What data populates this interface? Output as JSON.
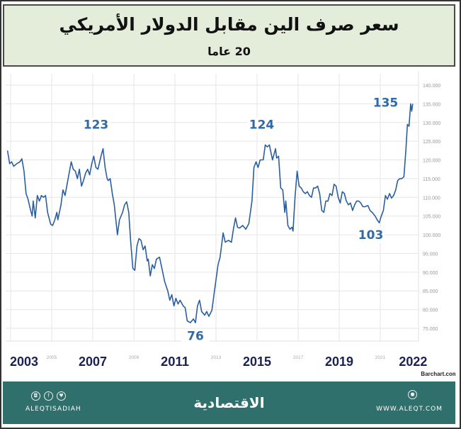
{
  "header": {
    "title": "سعر صرف الين مقابل الدولار الأمريكي",
    "subtitle": "20 عاما"
  },
  "footer": {
    "handle": "ALEQTISADIAH",
    "logo": "الاقتصادية",
    "site": "WWW.ALEQT.COM",
    "icons": [
      "instagram-icon",
      "facebook-icon",
      "twitter-icon",
      "globe-icon"
    ]
  },
  "colors": {
    "line": "#2b5ea0",
    "annotation": "#2e6aa8",
    "year_label": "#1b2150",
    "footer": "#2f6f6c",
    "title_band": "#e3edd9"
  },
  "chart_data": {
    "type": "line",
    "source": "Barchart.com",
    "ylim": [
      75,
      140
    ],
    "yticks": [
      "75.000",
      "80.000",
      "85.000",
      "90.000",
      "95.000",
      "100.000",
      "105.000",
      "110.000",
      "115.000",
      "120.000",
      "125.000",
      "130.000",
      "135.000",
      "140.000"
    ],
    "y_axis_side": "right",
    "grid": true,
    "xticks_minor": [
      "2005",
      "2009",
      "2013",
      "2017",
      "2021"
    ],
    "xticks_major": [
      "2003",
      "2007",
      "2011",
      "2015",
      "2019",
      "2022"
    ],
    "annotations": [
      {
        "text": "123",
        "x": 2007.5,
        "y": 123
      },
      {
        "text": "76",
        "x": 2012.0,
        "y": 76
      },
      {
        "text": "124",
        "x": 2015.5,
        "y": 124
      },
      {
        "text": "103",
        "x": 2020.95,
        "y": 103
      },
      {
        "text": "135",
        "x": 2022.5,
        "y": 135
      }
    ],
    "series": [
      {
        "x": [
          2002.85,
          2002.95,
          2003.05,
          2003.15,
          2003.3,
          2003.45,
          2003.55,
          2003.65,
          2003.75,
          2003.85,
          2003.95,
          2004.05,
          2004.1,
          2004.2,
          2004.3,
          2004.4,
          2004.5,
          2004.6,
          2004.7,
          2004.8,
          2004.95,
          2005.05,
          2005.15,
          2005.25,
          2005.3,
          2005.45,
          2005.55,
          2005.65,
          2005.8,
          2005.95,
          2006.05,
          2006.15,
          2006.25,
          2006.35,
          2006.45,
          2006.55,
          2006.65,
          2006.75,
          2006.85,
          2006.95,
          2007.05,
          2007.15,
          2007.25,
          2007.4,
          2007.5,
          2007.6,
          2007.7,
          2007.75,
          2007.85,
          2007.95,
          2008.05,
          2008.2,
          2008.3,
          2008.45,
          2008.55,
          2008.65,
          2008.75,
          2008.85,
          2008.95,
          2009.05,
          2009.15,
          2009.25,
          2009.35,
          2009.45,
          2009.55,
          2009.65,
          2009.7,
          2009.8,
          2009.9,
          2010.0,
          2010.1,
          2010.25,
          2010.35,
          2010.5,
          2010.65,
          2010.75,
          2010.85,
          2010.95,
          2011.05,
          2011.15,
          2011.25,
          2011.4,
          2011.5,
          2011.6,
          2011.75,
          2011.9,
          2012.0,
          2012.1,
          2012.2,
          2012.3,
          2012.45,
          2012.55,
          2012.65,
          2012.8,
          2012.95,
          2013.1,
          2013.2,
          2013.35,
          2013.45,
          2013.6,
          2013.75,
          2013.85,
          2013.95,
          2014.05,
          2014.15,
          2014.3,
          2014.45,
          2014.6,
          2014.75,
          2014.85,
          2014.95,
          2015.05,
          2015.15,
          2015.3,
          2015.4,
          2015.5,
          2015.6,
          2015.75,
          2015.9,
          2015.95,
          2016.05,
          2016.15,
          2016.25,
          2016.35,
          2016.4,
          2016.5,
          2016.6,
          2016.7,
          2016.75,
          2016.85,
          2016.95,
          2017.05,
          2017.15,
          2017.25,
          2017.35,
          2017.45,
          2017.55,
          2017.65,
          2017.75,
          2017.85,
          2017.95,
          2018.05,
          2018.15,
          2018.25,
          2018.35,
          2018.45,
          2018.55,
          2018.65,
          2018.75,
          2018.85,
          2018.95,
          2019.05,
          2019.15,
          2019.25,
          2019.35,
          2019.45,
          2019.55,
          2019.65,
          2019.75,
          2019.85,
          2019.95,
          2020.05,
          2020.15,
          2020.25,
          2020.4,
          2020.5,
          2020.6,
          2020.75,
          2020.85,
          2020.95,
          2021.05,
          2021.15,
          2021.25,
          2021.35,
          2021.45,
          2021.55,
          2021.65,
          2021.75,
          2021.85,
          2021.95,
          2022.05,
          2022.15,
          2022.25,
          2022.32,
          2022.4,
          2022.48,
          2022.53,
          2022.58
        ],
        "values": [
          122.5,
          119,
          119.5,
          118.3,
          119,
          119.5,
          120.3,
          117,
          111,
          109.5,
          107,
          105,
          109,
          104.5,
          110.5,
          109,
          110.5,
          110,
          110.5,
          106,
          102.8,
          102.5,
          104,
          106,
          104,
          108,
          112,
          110.5,
          115,
          119.5,
          117.5,
          117,
          115,
          117.5,
          113,
          114.5,
          116.5,
          117.5,
          116,
          119,
          121,
          118,
          117.5,
          121,
          123,
          118,
          115,
          114.5,
          115,
          111,
          108,
          100,
          104,
          106,
          108,
          108.8,
          106,
          98,
          91,
          90.5,
          97,
          99,
          98.5,
          96,
          97,
          93,
          93.5,
          89,
          92,
          91,
          93.5,
          94,
          91.5,
          87.5,
          85,
          82.5,
          84,
          81,
          83,
          81.5,
          82.5,
          81,
          80.5,
          77,
          76.5,
          77.5,
          76.5,
          81,
          82.5,
          79.5,
          78.5,
          79.5,
          78.2,
          79.8,
          86,
          92,
          94,
          100.5,
          98,
          98.5,
          98,
          101.5,
          104.5,
          102,
          101.8,
          102.5,
          101.5,
          103,
          109,
          118,
          119.5,
          118,
          120,
          120,
          124,
          123.5,
          124,
          120,
          123,
          120.5,
          121,
          112.5,
          112,
          106,
          109,
          102.5,
          101.5,
          102,
          101,
          110,
          117,
          113,
          112.5,
          111.5,
          111,
          111.5,
          110.5,
          110,
          112.5,
          112.5,
          113,
          111,
          106.5,
          106,
          109,
          109,
          111,
          110.5,
          113.5,
          113,
          110,
          108.5,
          111.5,
          111,
          109,
          108,
          108.5,
          106.5,
          108,
          109,
          109,
          108.5,
          107.5,
          107.5,
          107.8,
          106.5,
          106,
          105,
          104,
          103.2,
          105,
          106.5,
          110.5,
          109.5,
          111,
          109.8,
          110.5,
          112,
          114.5,
          115,
          115,
          115.5,
          123,
          129.5,
          129,
          135,
          133,
          135
        ]
      }
    ]
  }
}
